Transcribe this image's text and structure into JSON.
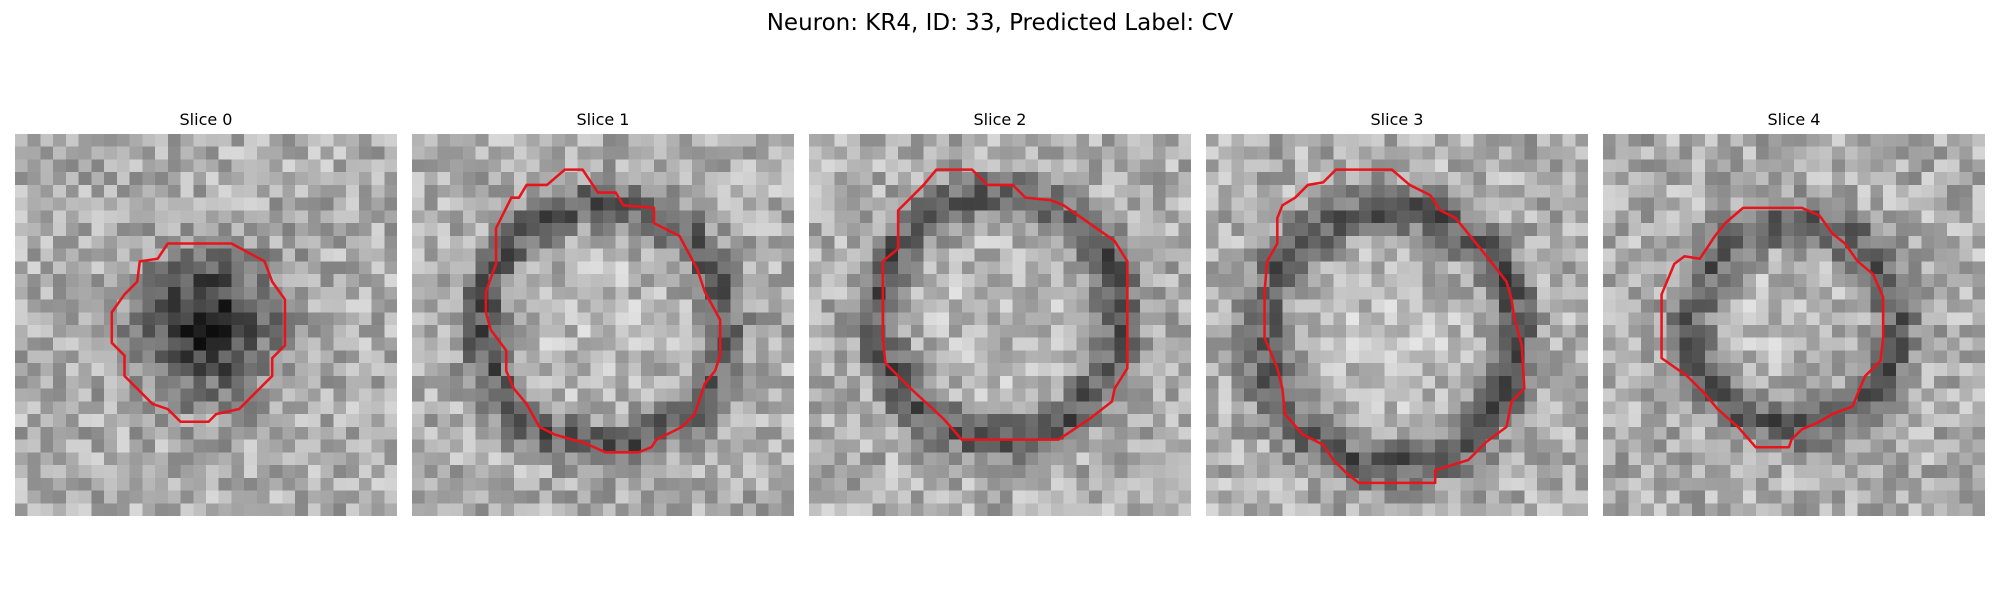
{
  "figure": {
    "title": "Neuron: KR4, ID: 33, Predicted Label: CV",
    "contour_color": "#e8141c",
    "colormap": "grayscale",
    "grid_size": 30
  },
  "slices": [
    {
      "label": "Slice 0",
      "description": "dark blob enclosed by contour",
      "blob": {
        "center": [
          15,
          15
        ],
        "radius": 6,
        "dark_core": true
      },
      "contour": [
        [
          15,
          8.6
        ],
        [
          17,
          8.6
        ],
        [
          19.6,
          10
        ],
        [
          20.2,
          11.6
        ],
        [
          21.2,
          13
        ],
        [
          21.2,
          15
        ],
        [
          21.2,
          16.6
        ],
        [
          20.2,
          17.6
        ],
        [
          20.2,
          19
        ],
        [
          19,
          20.2
        ],
        [
          17.6,
          21.6
        ],
        [
          15.8,
          22
        ],
        [
          15.2,
          22.6
        ],
        [
          13,
          22.6
        ],
        [
          12,
          21.6
        ],
        [
          10.8,
          21.2
        ],
        [
          9.6,
          20
        ],
        [
          8.6,
          19
        ],
        [
          8.6,
          17.4
        ],
        [
          7.6,
          16.4
        ],
        [
          7.6,
          14
        ],
        [
          8.6,
          12.6
        ],
        [
          9.6,
          11.6
        ],
        [
          9.8,
          10
        ],
        [
          11.2,
          9.8
        ],
        [
          12,
          8.6
        ]
      ]
    },
    {
      "label": "Slice 1",
      "description": "dark ring enclosed by contour",
      "blob": {
        "center": [
          15,
          15
        ],
        "radius": 9.5,
        "dark_core": false
      },
      "contour": [
        [
          12,
          2.8
        ],
        [
          13.4,
          2.8
        ],
        [
          14.6,
          4.6
        ],
        [
          16,
          4.6
        ],
        [
          16.6,
          5.6
        ],
        [
          19,
          5.8
        ],
        [
          19,
          7
        ],
        [
          21,
          8
        ],
        [
          22.4,
          10.6
        ],
        [
          23,
          12.4
        ],
        [
          24.2,
          14.6
        ],
        [
          24.2,
          16.6
        ],
        [
          24.2,
          17.4
        ],
        [
          23.8,
          18.6
        ],
        [
          23,
          19.6
        ],
        [
          22.2,
          22
        ],
        [
          21.2,
          23
        ],
        [
          19.2,
          24
        ],
        [
          18.8,
          24.6
        ],
        [
          17.8,
          25
        ],
        [
          15.2,
          25
        ],
        [
          13.4,
          24.2
        ],
        [
          12.6,
          24
        ],
        [
          11.2,
          23.6
        ],
        [
          10,
          23
        ],
        [
          9,
          21.2
        ],
        [
          8,
          20
        ],
        [
          7.4,
          18.6
        ],
        [
          7.4,
          17
        ],
        [
          6.2,
          15.4
        ],
        [
          5.8,
          14
        ],
        [
          5.8,
          12.4
        ],
        [
          6.6,
          10.2
        ],
        [
          6.6,
          7.4
        ],
        [
          7.8,
          5
        ],
        [
          8.4,
          5
        ],
        [
          9,
          4
        ],
        [
          10.6,
          4
        ]
      ]
    },
    {
      "label": "Slice 2",
      "description": "dark ring enclosed by contour",
      "blob": {
        "center": [
          15,
          14.4
        ],
        "radius": 9.5,
        "dark_core": false
      },
      "contour": [
        [
          10,
          2.8
        ],
        [
          12.8,
          2.8
        ],
        [
          14,
          4
        ],
        [
          16,
          4
        ],
        [
          17,
          5
        ],
        [
          19,
          5.2
        ],
        [
          20,
          5.6
        ],
        [
          24,
          8.4
        ],
        [
          25,
          10
        ],
        [
          25,
          14
        ],
        [
          25,
          18.4
        ],
        [
          24,
          20
        ],
        [
          23.8,
          21
        ],
        [
          22,
          22.4
        ],
        [
          19.6,
          24
        ],
        [
          12,
          24
        ],
        [
          10.6,
          22.4
        ],
        [
          8,
          20
        ],
        [
          6,
          18
        ],
        [
          5.8,
          16
        ],
        [
          5.8,
          10
        ],
        [
          7,
          9
        ],
        [
          7,
          6
        ],
        [
          8,
          5
        ],
        [
          9,
          4
        ]
      ]
    },
    {
      "label": "Slice 3",
      "description": "dark ring with bright interior enclosed by contour",
      "blob": {
        "center": [
          14.4,
          16
        ],
        "radius": 10,
        "dark_core": false
      },
      "contour": [
        [
          10.2,
          2.8
        ],
        [
          14.6,
          2.8
        ],
        [
          16,
          4
        ],
        [
          17.6,
          4.8
        ],
        [
          18.4,
          6
        ],
        [
          19.6,
          6.6
        ],
        [
          22.2,
          9.8
        ],
        [
          23.6,
          11.6
        ],
        [
          24,
          13
        ],
        [
          24.2,
          14.4
        ],
        [
          24.8,
          16.6
        ],
        [
          25,
          20
        ],
        [
          24,
          21
        ],
        [
          23.6,
          23
        ],
        [
          22,
          24.2
        ],
        [
          20.6,
          25.6
        ],
        [
          18,
          26.4
        ],
        [
          18,
          27.4
        ],
        [
          15,
          27.4
        ],
        [
          12,
          27.4
        ],
        [
          11,
          26.6
        ],
        [
          10,
          25.6
        ],
        [
          9.2,
          24.4
        ],
        [
          7.6,
          23.6
        ],
        [
          6.2,
          22
        ],
        [
          6,
          20
        ],
        [
          5.6,
          18.4
        ],
        [
          4.6,
          16
        ],
        [
          4.6,
          14.4
        ],
        [
          4.6,
          12.4
        ],
        [
          4.8,
          10
        ],
        [
          5.6,
          8.6
        ],
        [
          5.6,
          6.6
        ],
        [
          6,
          5.6
        ],
        [
          7,
          5
        ],
        [
          8,
          4
        ],
        [
          9.2,
          3.8
        ]
      ]
    },
    {
      "label": "Slice 4",
      "description": "dark ring enclosed by contour",
      "blob": {
        "center": [
          15,
          15
        ],
        "radius": 8,
        "dark_core": false
      },
      "contour": [
        [
          11,
          5.8
        ],
        [
          15.6,
          5.8
        ],
        [
          17,
          6.4
        ],
        [
          18,
          7.8
        ],
        [
          19,
          8.6
        ],
        [
          20,
          10
        ],
        [
          21.2,
          11
        ],
        [
          22,
          12.8
        ],
        [
          22,
          16
        ],
        [
          21.8,
          17.8
        ],
        [
          20.6,
          19
        ],
        [
          20,
          20.4
        ],
        [
          19.6,
          21.4
        ],
        [
          18,
          22
        ],
        [
          17,
          22.6
        ],
        [
          15.6,
          23.2
        ],
        [
          14.8,
          24
        ],
        [
          14.6,
          24.6
        ],
        [
          12,
          24.6
        ],
        [
          10.6,
          23
        ],
        [
          9,
          21.6
        ],
        [
          8,
          20.4
        ],
        [
          6.6,
          19
        ],
        [
          4.6,
          17.6
        ],
        [
          4.6,
          16
        ],
        [
          4.6,
          12.6
        ],
        [
          5.6,
          10.2
        ],
        [
          6.4,
          9.6
        ],
        [
          7.6,
          9.8
        ],
        [
          8.8,
          8
        ],
        [
          9.6,
          7
        ]
      ]
    }
  ]
}
